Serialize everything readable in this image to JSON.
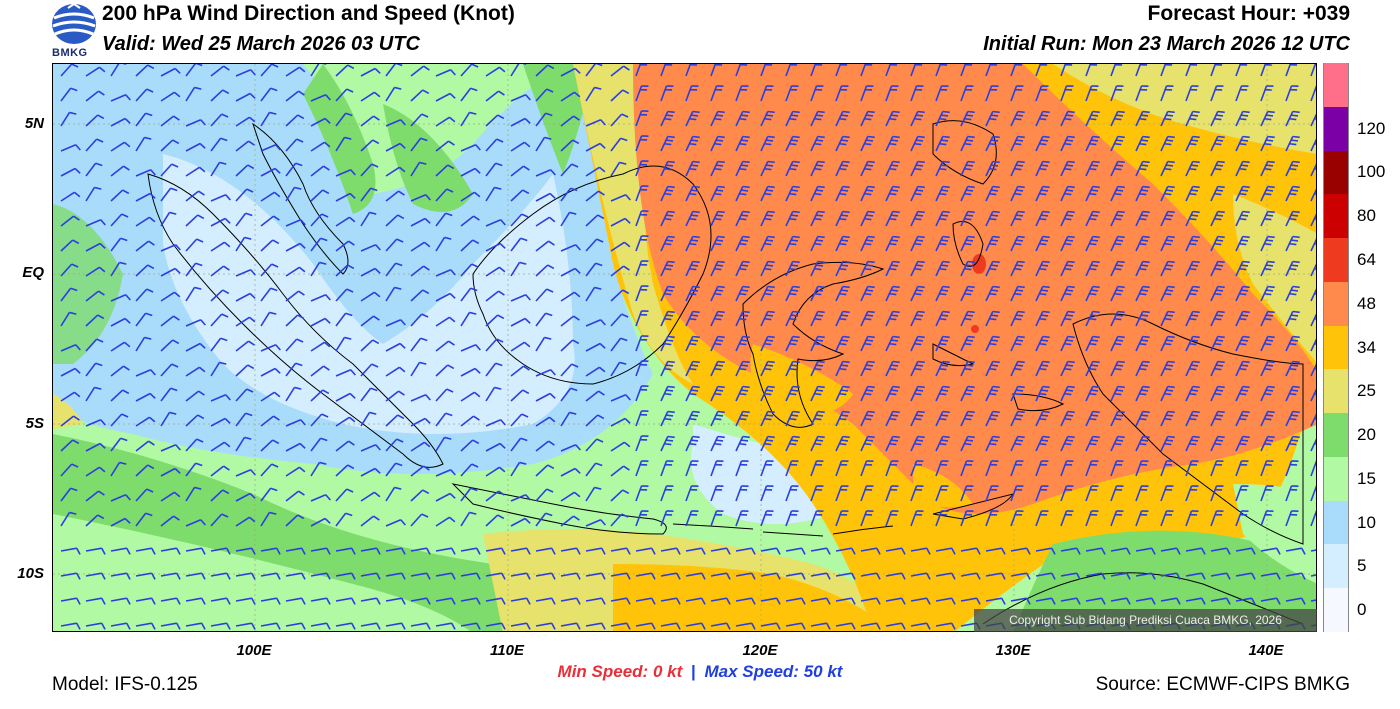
{
  "header": {
    "title": "200 hPa Wind Direction and Speed (Knot)",
    "valid": "Valid: Wed 25 March 2026 03 UTC",
    "forecast_hour": "Forecast Hour: +039",
    "initial_run": "Initial Run: Mon 23 March 2026 12 UTC",
    "logo_text": "BMKG"
  },
  "map": {
    "lat_labels": [
      "5N",
      "EQ",
      "5S",
      "10S"
    ],
    "lon_labels": [
      "100E",
      "110E",
      "120E",
      "130E",
      "140E"
    ],
    "copyright": "Copyright Sub Bidang Prediksi Cuaca BMKG, 2026",
    "wind_barb_color": "#2b3fe0",
    "coastline_color": "#000000"
  },
  "colorbar": {
    "labels": [
      "0",
      "5",
      "10",
      "15",
      "20",
      "25",
      "34",
      "48",
      "64",
      "80",
      "100",
      "120"
    ],
    "colors": [
      "#f5f8ff",
      "#d4eeff",
      "#a9dcfb",
      "#b2f9a3",
      "#7ddc6c",
      "#e6e26c",
      "#ffc40a",
      "#ff8a4c",
      "#ee3a1e",
      "#cc0000",
      "#990000",
      "#7b00a6",
      "#ff6f8a"
    ]
  },
  "speed_range": {
    "min_label": "Min Speed:",
    "min_value": "0 kt",
    "separator": "|",
    "max_label": "Max Speed:",
    "max_value": "50 kt"
  },
  "footer": {
    "model": "Model: IFS-0.125",
    "source": "Source: ECMWF-CIPS BMKG"
  }
}
